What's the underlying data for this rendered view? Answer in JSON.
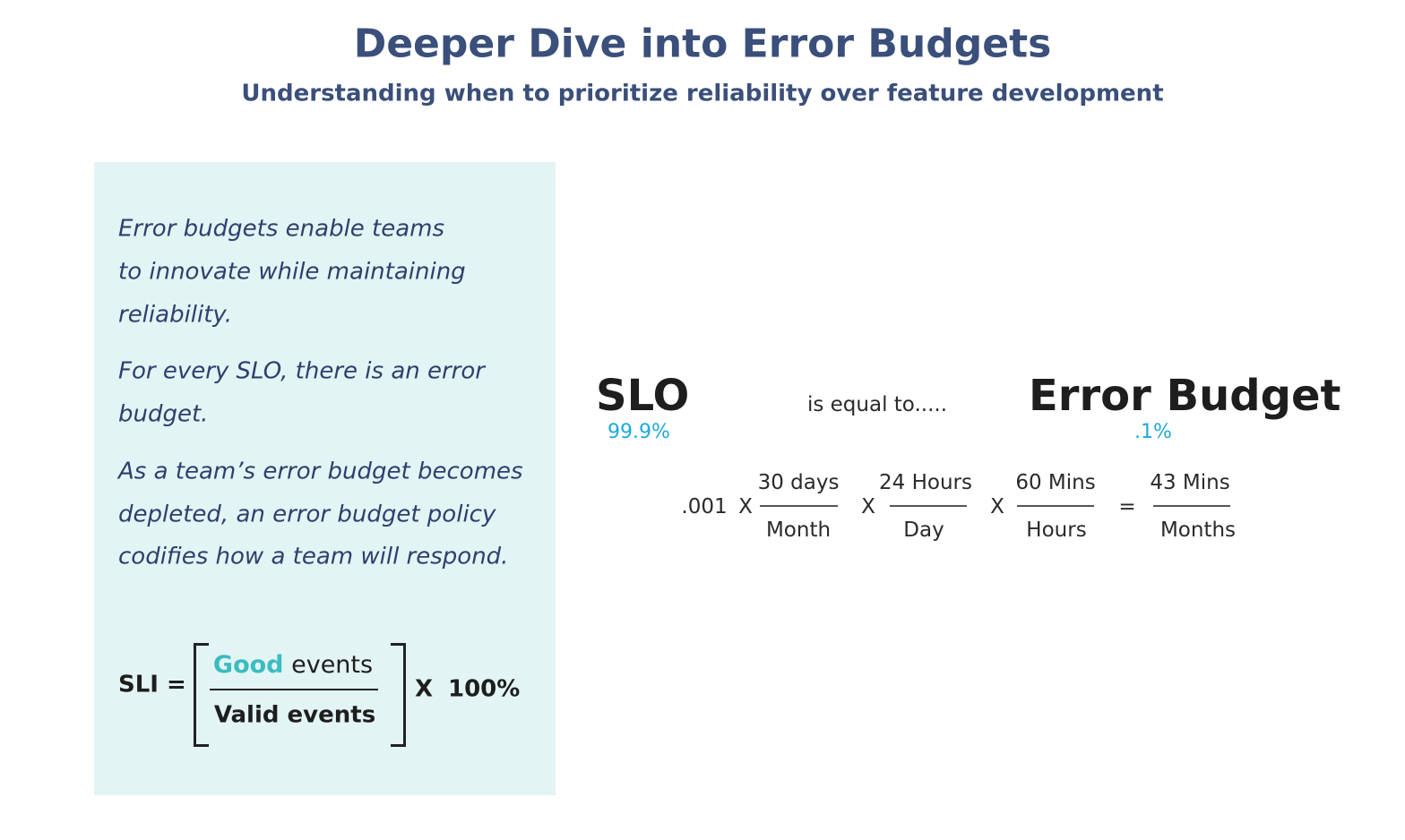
{
  "header": {
    "title": "Deeper Dive into Error Budgets",
    "subtitle": "Understanding when to prioritize reliability over feature development"
  },
  "panel": {
    "paragraphs": [
      [
        "Error budgets enable teams",
        "to innovate while maintaining",
        "reliability."
      ],
      [
        "For every SLO, there is an error",
        "budget."
      ],
      [
        "As a team’s error budget becomes",
        "depleted, an error budget policy",
        "codifies how a team will respond."
      ]
    ],
    "formula": {
      "label": "SLI =",
      "numerator": {
        "highlight": "Good",
        "rest": "events"
      },
      "denominator": "Valid events",
      "multiplier": "X",
      "factor": "100%"
    }
  },
  "comparison": {
    "left": {
      "label": "SLO",
      "value": "99.9%"
    },
    "middle": "is equal to.....",
    "right": {
      "label": "Error Budget",
      "value": ".1%"
    }
  },
  "equation": {
    "start": ".001",
    "terms": [
      {
        "operator": "X",
        "numerator": "30 days",
        "denominator": "Month"
      },
      {
        "operator": "X",
        "numerator": "24 Hours",
        "denominator": "Day"
      },
      {
        "operator": "X",
        "numerator": "60 Mins",
        "denominator": "Hours"
      },
      {
        "operator": "=",
        "numerator": "43 Mins",
        "denominator": "Months"
      }
    ]
  }
}
